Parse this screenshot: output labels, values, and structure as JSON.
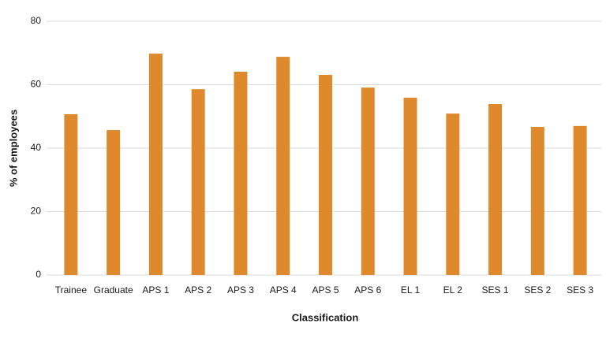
{
  "chart_data": {
    "type": "bar",
    "x_label": "Classification",
    "y_label": "% of employees",
    "categories": [
      "Trainee",
      "Graduate",
      "APS 1",
      "APS 2",
      "APS 3",
      "APS 4",
      "APS 5",
      "APS 6",
      "EL 1",
      "EL 2",
      "SES 1",
      "SES 2",
      "SES 3"
    ],
    "values": [
      50.7,
      45.7,
      69.8,
      58.6,
      64.1,
      68.8,
      63.1,
      59.1,
      55.9,
      50.9,
      53.9,
      46.7,
      47.0
    ],
    "color": "#de8a2c",
    "ylim": [
      0,
      80
    ],
    "yticks": [
      0,
      20,
      40,
      60,
      80
    ],
    "grid": true
  }
}
